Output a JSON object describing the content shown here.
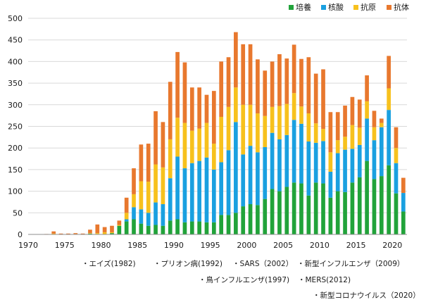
{
  "chart_data": {
    "type": "bar",
    "stacked": true,
    "title": "",
    "xlabel": "",
    "ylabel": "",
    "ylim": [
      0,
      500
    ],
    "yticks": [
      0,
      50,
      100,
      150,
      200,
      250,
      300,
      350,
      400,
      450,
      500
    ],
    "xlim": [
      1970,
      2021
    ],
    "xticks": [
      1970,
      1975,
      1980,
      1985,
      1990,
      1995,
      2000,
      2005,
      2010,
      2015,
      2020
    ],
    "grid": "horizontal",
    "legend_position": "top-right",
    "x": [
      1970,
      1971,
      1972,
      1973,
      1974,
      1975,
      1976,
      1977,
      1978,
      1979,
      1980,
      1981,
      1982,
      1983,
      1984,
      1985,
      1986,
      1987,
      1988,
      1989,
      1990,
      1991,
      1992,
      1993,
      1994,
      1995,
      1996,
      1997,
      1998,
      1999,
      2000,
      2001,
      2002,
      2003,
      2004,
      2005,
      2006,
      2007,
      2008,
      2009,
      2010,
      2011,
      2012,
      2013,
      2014,
      2015,
      2016,
      2017,
      2018,
      2019,
      2020,
      2021
    ],
    "series": [
      {
        "name": "培養",
        "color": "#21a33a",
        "values": [
          0,
          0,
          0,
          0,
          0,
          0,
          0,
          0,
          2,
          1,
          0,
          3,
          20,
          30,
          35,
          25,
          20,
          22,
          20,
          32,
          35,
          28,
          30,
          30,
          28,
          28,
          45,
          45,
          50,
          65,
          70,
          68,
          82,
          105,
          100,
          110,
          120,
          118,
          90,
          120,
          118,
          85,
          100,
          98,
          120,
          132,
          170,
          128,
          135,
          160,
          95,
          53
        ]
      },
      {
        "name": "核酸",
        "color": "#1aa0e0",
        "values": [
          0,
          0,
          0,
          0,
          0,
          0,
          0,
          0,
          0,
          0,
          0,
          0,
          0,
          5,
          28,
          33,
          30,
          52,
          50,
          98,
          145,
          125,
          135,
          140,
          150,
          122,
          122,
          150,
          210,
          120,
          135,
          122,
          120,
          130,
          120,
          120,
          145,
          138,
          125,
          92,
          98,
          60,
          88,
          98,
          78,
          75,
          98,
          90,
          113,
          128,
          70,
          43
        ]
      },
      {
        "name": "抗原",
        "color": "#f7c11d",
        "values": [
          0,
          0,
          0,
          2,
          0,
          0,
          1,
          0,
          1,
          2,
          5,
          2,
          2,
          15,
          30,
          65,
          72,
          88,
          85,
          90,
          90,
          105,
          75,
          75,
          80,
          60,
          105,
          100,
          80,
          115,
          95,
          90,
          72,
          60,
          77,
          72,
          62,
          40,
          65,
          45,
          28,
          45,
          30,
          30,
          55,
          40,
          40,
          30,
          10,
          50,
          35,
          0
        ]
      },
      {
        "name": "抗体",
        "color": "#e8782e",
        "values": [
          0,
          0,
          1,
          5,
          2,
          2,
          2,
          2,
          8,
          20,
          12,
          15,
          10,
          35,
          60,
          85,
          88,
          123,
          105,
          133,
          152,
          140,
          100,
          95,
          65,
          122,
          128,
          115,
          128,
          140,
          140,
          125,
          105,
          105,
          120,
          105,
          112,
          110,
          130,
          115,
          138,
          93,
          65,
          72,
          65,
          65,
          60,
          38,
          10,
          75,
          48,
          35
        ]
      }
    ]
  },
  "notes": [
    "・エイズ(1982)",
    "・プリオン病(1992)",
    "・SARS（2002）",
    "・新型インフルエンザ（2009）",
    "・鳥インフルエンザ(1997)",
    "・MERS(2012)",
    "・新型コロナウイルス（2020）"
  ]
}
